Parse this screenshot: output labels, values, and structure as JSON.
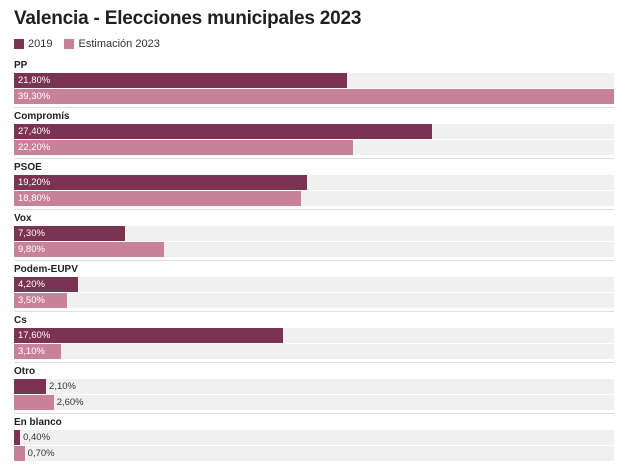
{
  "chart_data": {
    "type": "bar",
    "orientation": "horizontal",
    "title": "Valencia - Elecciones municipales 2023",
    "categories": [
      "PP",
      "Compromís",
      "PSOE",
      "Vox",
      "Podem-EUPV",
      "Cs",
      "Otro",
      "En blanco"
    ],
    "series": [
      {
        "name": "2019",
        "color": "#7a3350",
        "values": [
          21.8,
          27.4,
          19.2,
          7.3,
          4.2,
          17.6,
          2.1,
          0.4
        ],
        "labels": [
          "21,80%",
          "27,40%",
          "19,20%",
          "7,30%",
          "4,20%",
          "17,60%",
          "2,10%",
          "0,40%"
        ]
      },
      {
        "name": "Estimación 2023",
        "color": "#c98099",
        "values": [
          39.3,
          22.2,
          18.8,
          9.8,
          3.5,
          3.1,
          2.6,
          0.7
        ],
        "labels": [
          "39,30%",
          "22,20%",
          "18,80%",
          "9,80%",
          "3,50%",
          "3,10%",
          "2,60%",
          "0,70%"
        ]
      }
    ],
    "xlim": [
      0,
      39.3
    ],
    "legend": "top-left",
    "grid": false
  }
}
